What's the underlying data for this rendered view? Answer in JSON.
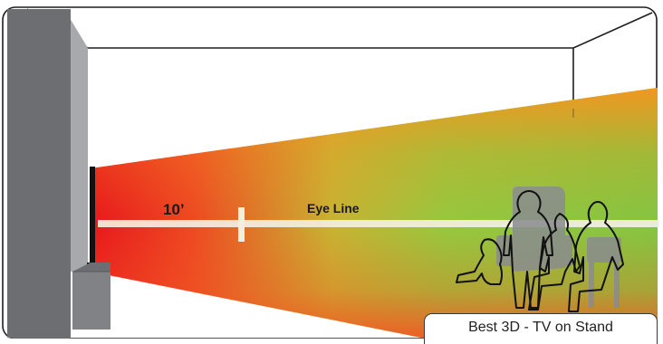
{
  "labels": {
    "distance": "10’",
    "eye_line": "Eye Line"
  },
  "caption": "Best 3D - TV on Stand",
  "colors": {
    "beam_near": "#e8191d",
    "beam_mid": "#8fc73e",
    "beam_far_top": "#f39620",
    "beam_far_bottom": "#f15a24",
    "eye_line": "#f3efdf",
    "wall": "#6d6e71",
    "wall_edge": "#a7a9ac",
    "stand": "#808285",
    "outline": "#1e1e1e"
  },
  "icons": [
    "tv-screen-icon",
    "tv-stand-icon",
    "child-silhouette-icon",
    "standing-person-silhouette-icon",
    "seated-adult-silhouette-icon",
    "seated-adult-right-silhouette-icon",
    "sofa-icon",
    "chair-icon"
  ]
}
